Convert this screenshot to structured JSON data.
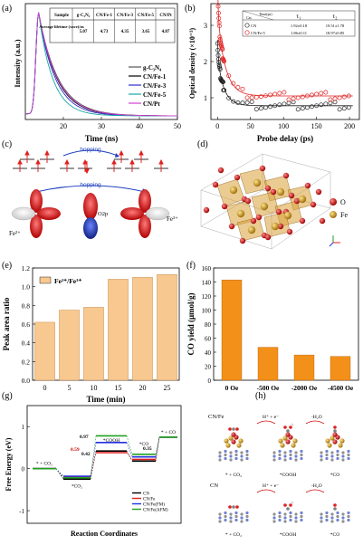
{
  "panel_labels": {
    "a": "(a)",
    "b": "(b)",
    "c": "(c)",
    "d": "(d)",
    "e": "(e)",
    "f": "(f)",
    "g": "(g)",
    "h": "(h)"
  },
  "panel_a": {
    "chart_data": {
      "type": "line",
      "xlabel": "Time (ns)",
      "ylabel": "Intensity (a.u.)",
      "xticks": [
        "20",
        "30",
        "40",
        "50"
      ],
      "xlim": [
        10,
        50
      ],
      "series": [
        {
          "name": "g-C₃N₄",
          "color": "#555555",
          "tau": 5.07
        },
        {
          "name": "CN/Fe-1",
          "color": "#000000",
          "tau": 4.73
        },
        {
          "name": "CN/Fe-3",
          "color": "#2d2dd0",
          "tau": 4.35
        },
        {
          "name": "CN/Fe-5",
          "color": "#18a8a0",
          "tau": 3.65
        },
        {
          "name": "CN/Pt",
          "color": "#d040d0",
          "tau": 4.87
        }
      ]
    },
    "table": {
      "headers": [
        "Sample",
        "g-C₃N₄",
        "CN/Fe-1",
        "CN/Fe-3",
        "CN/Fe-5",
        "CN/Pt"
      ],
      "row_label": "Average lifetime (τave)/ns",
      "values": [
        "5.07",
        "4.73",
        "4.35",
        "3.65",
        "4.87"
      ]
    }
  },
  "panel_b": {
    "chart_data": {
      "type": "scatter",
      "xlabel": "Probe delay (ps)",
      "ylabel": "Optical density (×10⁻³)",
      "xticks": [
        "0",
        "50",
        "100",
        "150",
        "200"
      ],
      "yticks": [
        "1",
        "2",
        "3"
      ],
      "xlim": [
        -10,
        215
      ],
      "ylim": [
        0.4,
        3.6
      ],
      "series": [
        {
          "name": "CN",
          "color": "#222222",
          "baseline": 0.78,
          "amp": 1.3,
          "tau": 10
        },
        {
          "name": "CN/Fe-5",
          "color": "#e02020",
          "baseline": 1.05,
          "amp": 2.2,
          "tau": 12
        }
      ]
    },
    "table": {
      "headers": [
        "Cat.",
        "Time(ps)",
        "τ₁",
        "τ₂"
      ],
      "rows": [
        {
          "name": "CN",
          "t1": "1.92±0.18",
          "t2": "19.51±1.78"
        },
        {
          "name": "CN/Fe-5",
          "t1": "1.86±0.11",
          "t2": "18.97±0.85"
        }
      ]
    }
  },
  "panel_c": {
    "hopping_top": "hopping",
    "hopping_bottom": "hopping",
    "fe2_label": "Fe²⁺",
    "o2p_label": "O2p",
    "fe3_label": "Fe³⁺"
  },
  "panel_d": {
    "legend": [
      {
        "label": "O",
        "color": "#d02020"
      },
      {
        "label": "Fe",
        "color": "#b8860b"
      }
    ]
  },
  "panel_e": {
    "chart_data": {
      "type": "bar",
      "xlabel": "Time (min)",
      "ylabel": "Peak area ratio",
      "legend": "Fe²⁺/Fe³⁺",
      "categories": [
        "0",
        "5",
        "10",
        "15",
        "20",
        "25"
      ],
      "values": [
        0.62,
        0.75,
        0.78,
        1.08,
        1.1,
        1.13
      ],
      "ylim": [
        0.0,
        1.2
      ],
      "yticks": [
        "0.0",
        "0.2",
        "0.4",
        "0.6",
        "0.8",
        "1.0",
        "1.2"
      ],
      "color": "#f7c890"
    }
  },
  "panel_f": {
    "chart_data": {
      "type": "bar",
      "xlabel": "",
      "ylabel": "CO yield (μmol/g)",
      "categories": [
        "0 Oe",
        "-500 Oe",
        "-2000 Oe",
        "-4500 Oe"
      ],
      "values": [
        143,
        47,
        36,
        34
      ],
      "ylim": [
        0,
        160
      ],
      "yticks": [
        "0",
        "20",
        "40",
        "60",
        "80",
        "100",
        "120",
        "140",
        "160"
      ],
      "color": "#f39019"
    }
  },
  "panel_g": {
    "chart_data": {
      "type": "line",
      "xlabel": "Reaction Coordinates",
      "ylabel": "Free Energy (eV)",
      "yticks": [
        "-1",
        "0",
        "1"
      ],
      "ylim": [
        -1.3,
        1.5
      ],
      "steps": [
        "* + CO₂",
        "*CO₂",
        "*COOH",
        "*CO",
        "* + CO"
      ],
      "step_values": [
        0.0,
        -0.2,
        0.55,
        0.25,
        0.75
      ],
      "annotations": [
        "0.97",
        "0.59",
        "0.42",
        "0.35"
      ],
      "series": [
        {
          "name": "CN",
          "color": "#000000",
          "values": [
            0.0,
            -0.25,
            0.42,
            0.18,
            0.75
          ]
        },
        {
          "name": "CN/Fe",
          "color": "#e02020",
          "values": [
            0.0,
            -0.2,
            0.38,
            0.22,
            0.75
          ]
        },
        {
          "name": "CN/Fe(FM)",
          "color": "#2030e0",
          "values": [
            0.0,
            -0.18,
            0.62,
            0.28,
            0.75
          ]
        },
        {
          "name": "CN/Fe(AFM)",
          "color": "#20a020",
          "values": [
            0.0,
            -0.22,
            0.78,
            0.34,
            0.75
          ]
        }
      ]
    }
  },
  "panel_h": {
    "title_top": "CN/Fe",
    "title_bottom": "CN",
    "step1": "H⁺ + e⁻",
    "step2": "-H₂O",
    "labels_top": [
      "* + CO₂",
      "*COOH",
      "*CO"
    ],
    "labels_bottom": [
      "* + CO₂",
      "*COOH",
      "*CO"
    ]
  }
}
